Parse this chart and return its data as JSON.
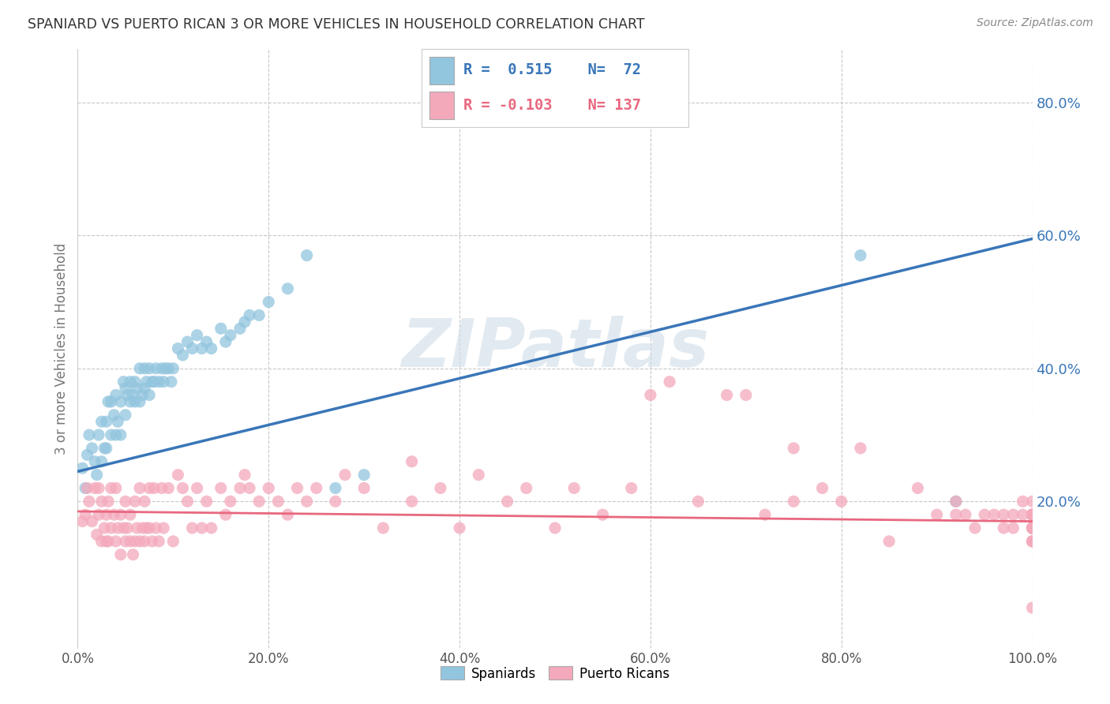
{
  "title": "SPANIARD VS PUERTO RICAN 3 OR MORE VEHICLES IN HOUSEHOLD CORRELATION CHART",
  "source": "Source: ZipAtlas.com",
  "ylabel": "3 or more Vehicles in Household",
  "watermark": "ZIPatlas",
  "legend_blue_R": "0.515",
  "legend_blue_N": "72",
  "legend_pink_R": "-0.103",
  "legend_pink_N": "137",
  "blue_color": "#92c5de",
  "pink_color": "#f4a9bb",
  "blue_line_color": "#3976b8",
  "pink_line_color": "#e8687f",
  "xlim": [
    0,
    1.0
  ],
  "ylim": [
    -0.02,
    0.88
  ],
  "xticks": [
    0.0,
    0.2,
    0.4,
    0.6,
    0.8,
    1.0
  ],
  "yticks_right": [
    0.2,
    0.4,
    0.6,
    0.8
  ],
  "blue_scatter_x": [
    0.005,
    0.008,
    0.01,
    0.012,
    0.015,
    0.018,
    0.02,
    0.022,
    0.025,
    0.025,
    0.028,
    0.03,
    0.03,
    0.032,
    0.035,
    0.035,
    0.038,
    0.04,
    0.04,
    0.042,
    0.045,
    0.045,
    0.048,
    0.05,
    0.05,
    0.052,
    0.055,
    0.055,
    0.058,
    0.06,
    0.06,
    0.062,
    0.065,
    0.065,
    0.068,
    0.07,
    0.07,
    0.072,
    0.075,
    0.075,
    0.078,
    0.08,
    0.082,
    0.085,
    0.088,
    0.09,
    0.092,
    0.095,
    0.098,
    0.1,
    0.105,
    0.11,
    0.115,
    0.12,
    0.125,
    0.13,
    0.135,
    0.14,
    0.15,
    0.155,
    0.16,
    0.17,
    0.175,
    0.18,
    0.19,
    0.2,
    0.22,
    0.24,
    0.27,
    0.3,
    0.82,
    0.92
  ],
  "blue_scatter_y": [
    0.25,
    0.22,
    0.27,
    0.3,
    0.28,
    0.26,
    0.24,
    0.3,
    0.26,
    0.32,
    0.28,
    0.28,
    0.32,
    0.35,
    0.3,
    0.35,
    0.33,
    0.3,
    0.36,
    0.32,
    0.3,
    0.35,
    0.38,
    0.33,
    0.37,
    0.36,
    0.35,
    0.38,
    0.36,
    0.35,
    0.38,
    0.37,
    0.35,
    0.4,
    0.36,
    0.37,
    0.4,
    0.38,
    0.36,
    0.4,
    0.38,
    0.38,
    0.4,
    0.38,
    0.4,
    0.38,
    0.4,
    0.4,
    0.38,
    0.4,
    0.43,
    0.42,
    0.44,
    0.43,
    0.45,
    0.43,
    0.44,
    0.43,
    0.46,
    0.44,
    0.45,
    0.46,
    0.47,
    0.48,
    0.48,
    0.5,
    0.52,
    0.57,
    0.22,
    0.24,
    0.57,
    0.2
  ],
  "pink_scatter_x": [
    0.005,
    0.008,
    0.01,
    0.012,
    0.015,
    0.018,
    0.02,
    0.022,
    0.022,
    0.025,
    0.025,
    0.028,
    0.03,
    0.03,
    0.032,
    0.032,
    0.035,
    0.035,
    0.038,
    0.04,
    0.04,
    0.042,
    0.045,
    0.045,
    0.048,
    0.05,
    0.05,
    0.052,
    0.055,
    0.055,
    0.058,
    0.06,
    0.06,
    0.062,
    0.065,
    0.065,
    0.068,
    0.07,
    0.07,
    0.072,
    0.075,
    0.075,
    0.078,
    0.08,
    0.082,
    0.085,
    0.088,
    0.09,
    0.095,
    0.1,
    0.105,
    0.11,
    0.115,
    0.12,
    0.125,
    0.13,
    0.135,
    0.14,
    0.15,
    0.155,
    0.16,
    0.17,
    0.175,
    0.18,
    0.19,
    0.2,
    0.21,
    0.22,
    0.23,
    0.24,
    0.25,
    0.27,
    0.28,
    0.3,
    0.32,
    0.35,
    0.35,
    0.38,
    0.4,
    0.42,
    0.45,
    0.47,
    0.5,
    0.52,
    0.55,
    0.58,
    0.6,
    0.62,
    0.65,
    0.68,
    0.7,
    0.72,
    0.75,
    0.75,
    0.78,
    0.8,
    0.82,
    0.85,
    0.88,
    0.9,
    0.92,
    0.92,
    0.93,
    0.94,
    0.95,
    0.96,
    0.97,
    0.97,
    0.98,
    0.98,
    0.99,
    0.99,
    1.0,
    1.0,
    1.0,
    1.0,
    1.0,
    1.0,
    1.0,
    1.0,
    1.0,
    1.0,
    1.0,
    1.0,
    1.0,
    1.0,
    1.0,
    1.0,
    1.0,
    1.0,
    1.0,
    1.0,
    1.0,
    1.0,
    1.0,
    1.0,
    1.0
  ],
  "pink_scatter_y": [
    0.17,
    0.18,
    0.22,
    0.2,
    0.17,
    0.22,
    0.15,
    0.18,
    0.22,
    0.14,
    0.2,
    0.16,
    0.14,
    0.18,
    0.14,
    0.2,
    0.16,
    0.22,
    0.18,
    0.14,
    0.22,
    0.16,
    0.12,
    0.18,
    0.16,
    0.14,
    0.2,
    0.16,
    0.14,
    0.18,
    0.12,
    0.14,
    0.2,
    0.16,
    0.14,
    0.22,
    0.16,
    0.14,
    0.2,
    0.16,
    0.22,
    0.16,
    0.14,
    0.22,
    0.16,
    0.14,
    0.22,
    0.16,
    0.22,
    0.14,
    0.24,
    0.22,
    0.2,
    0.16,
    0.22,
    0.16,
    0.2,
    0.16,
    0.22,
    0.18,
    0.2,
    0.22,
    0.24,
    0.22,
    0.2,
    0.22,
    0.2,
    0.18,
    0.22,
    0.2,
    0.22,
    0.2,
    0.24,
    0.22,
    0.16,
    0.2,
    0.26,
    0.22,
    0.16,
    0.24,
    0.2,
    0.22,
    0.16,
    0.22,
    0.18,
    0.22,
    0.36,
    0.38,
    0.2,
    0.36,
    0.36,
    0.18,
    0.2,
    0.28,
    0.22,
    0.2,
    0.28,
    0.14,
    0.22,
    0.18,
    0.18,
    0.2,
    0.18,
    0.16,
    0.18,
    0.18,
    0.16,
    0.18,
    0.16,
    0.18,
    0.2,
    0.18,
    0.18,
    0.16,
    0.18,
    0.16,
    0.14,
    0.18,
    0.16,
    0.18,
    0.16,
    0.18,
    0.14,
    0.16,
    0.04,
    0.16,
    0.16,
    0.18,
    0.14,
    0.18,
    0.18,
    0.16,
    0.18,
    0.16,
    0.18,
    0.2,
    0.18
  ]
}
